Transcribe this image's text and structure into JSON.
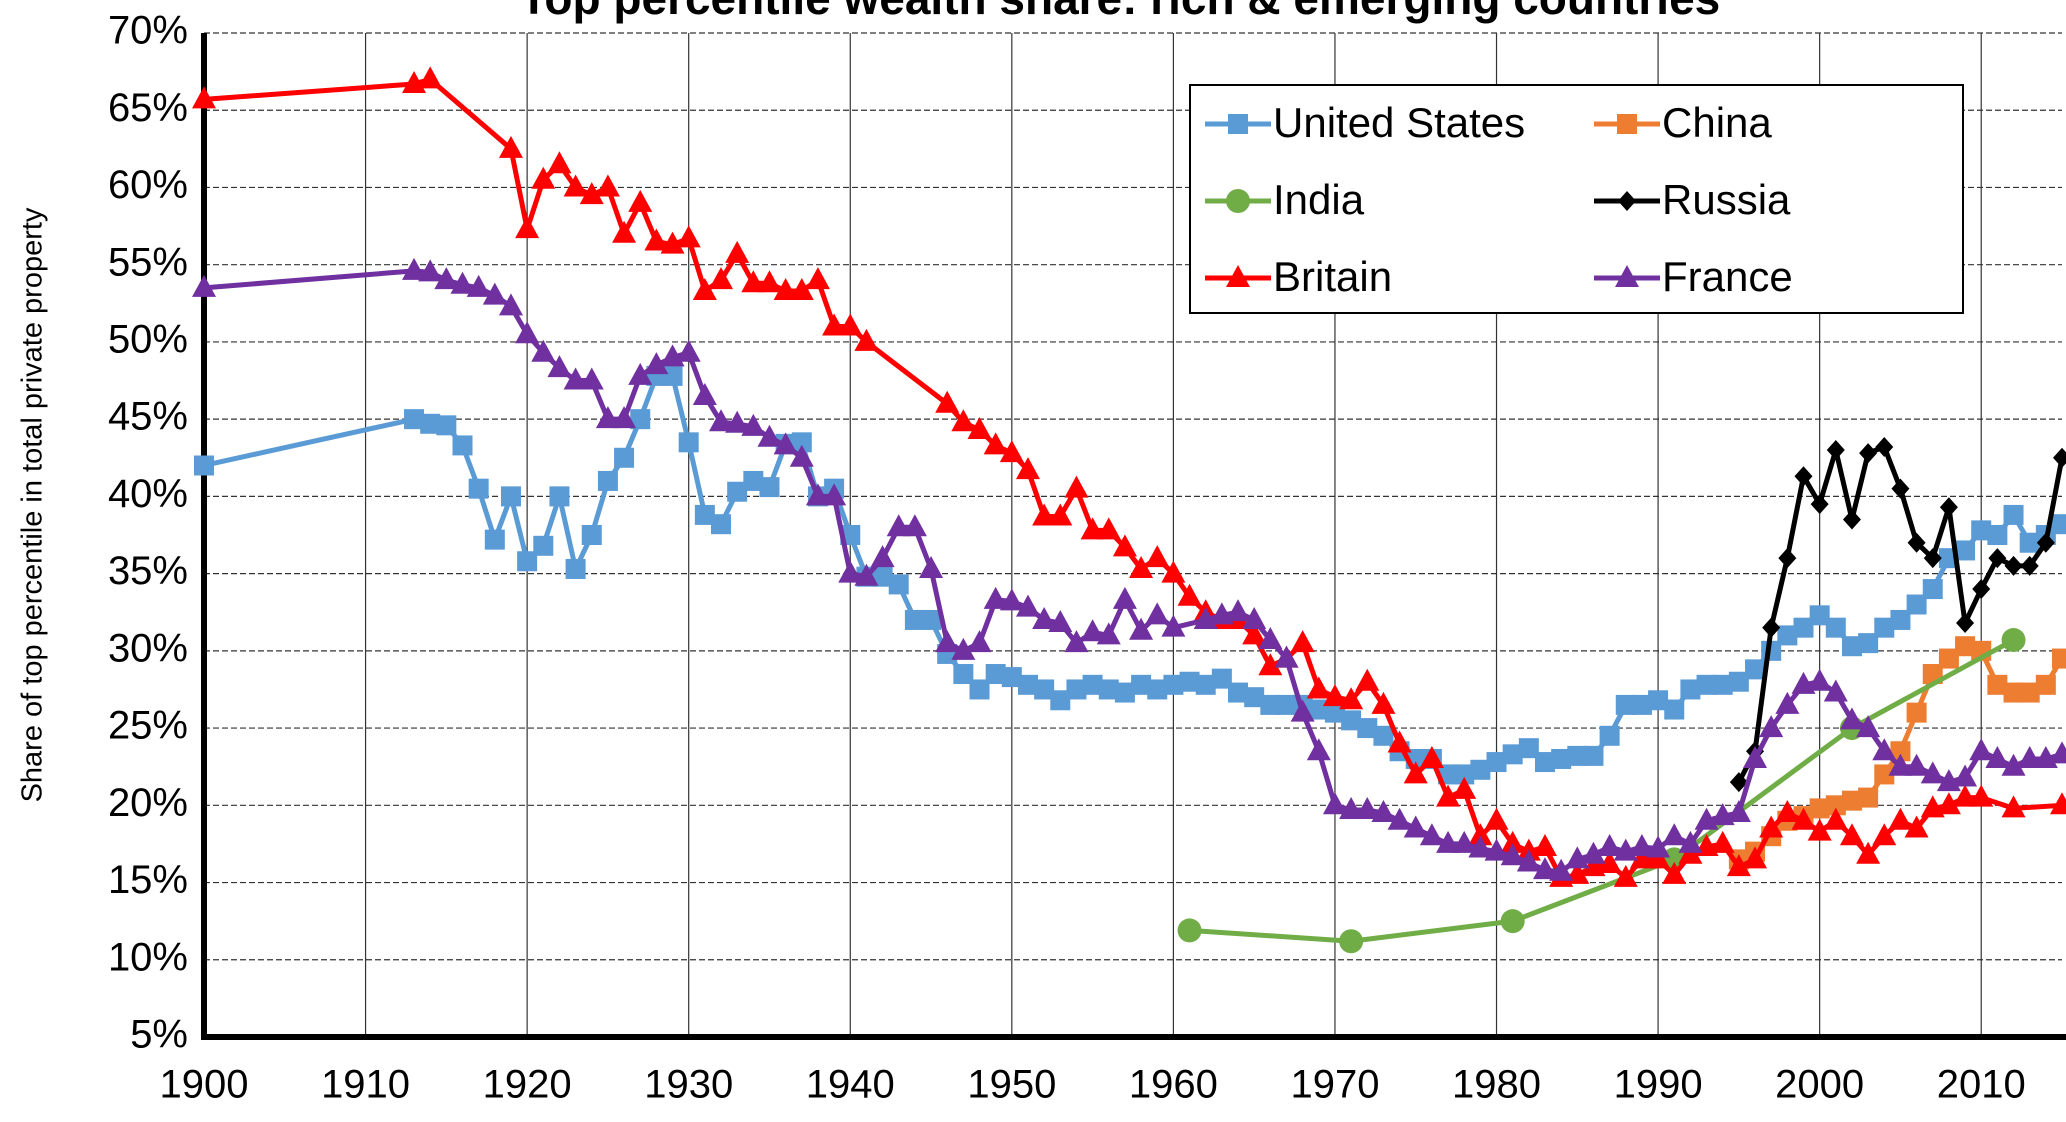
{
  "chart_data": {
    "type": "line",
    "title": "Top percentile wealth share: rich & emerging countries",
    "y_label": "Share of top percentile in total private property",
    "xlim": [
      1900,
      2015
    ],
    "xticks": [
      1900,
      1910,
      1920,
      1930,
      1940,
      1950,
      1960,
      1970,
      1980,
      1990,
      2000,
      2010
    ],
    "ylim": [
      5,
      70
    ],
    "yticks": [
      {
        "value": 5,
        "label": "5%"
      },
      {
        "value": 10,
        "label": "10%"
      },
      {
        "value": 15,
        "label": "15%"
      },
      {
        "value": 20,
        "label": "20%"
      },
      {
        "value": 25,
        "label": "25%"
      },
      {
        "value": 30,
        "label": "30%"
      },
      {
        "value": 35,
        "label": "35%"
      },
      {
        "value": 40,
        "label": "40%"
      },
      {
        "value": 45,
        "label": "45%"
      },
      {
        "value": 50,
        "label": "50%"
      },
      {
        "value": 55,
        "label": "55%"
      },
      {
        "value": 60,
        "label": "60%"
      },
      {
        "value": 65,
        "label": "65%"
      },
      {
        "value": 70,
        "label": "70%"
      }
    ],
    "grid": true,
    "legend": "top-right",
    "series": [
      {
        "name": "United States",
        "color": "#5b9bd5",
        "marker": "square",
        "x": [
          1900,
          1913,
          1914,
          1915,
          1916,
          1917,
          1918,
          1919,
          1920,
          1921,
          1922,
          1923,
          1924,
          1925,
          1926,
          1927,
          1928,
          1929,
          1930,
          1931,
          1932,
          1933,
          1934,
          1935,
          1936,
          1937,
          1938,
          1939,
          1940,
          1941,
          1942,
          1943,
          1944,
          1945,
          1946,
          1947,
          1948,
          1949,
          1950,
          1951,
          1952,
          1953,
          1954,
          1955,
          1956,
          1957,
          1958,
          1959,
          1960,
          1961,
          1962,
          1963,
          1964,
          1965,
          1966,
          1967,
          1968,
          1969,
          1970,
          1971,
          1972,
          1973,
          1974,
          1975,
          1976,
          1977,
          1978,
          1979,
          1980,
          1981,
          1982,
          1983,
          1984,
          1985,
          1986,
          1987,
          1988,
          1989,
          1990,
          1991,
          1992,
          1993,
          1994,
          1995,
          1996,
          1997,
          1998,
          1999,
          2000,
          2001,
          2002,
          2003,
          2004,
          2005,
          2006,
          2007,
          2008,
          2009,
          2010,
          2011,
          2012,
          2013,
          2014,
          2015
        ],
        "values": [
          42,
          45,
          44.7,
          44.6,
          43.3,
          40.5,
          37.2,
          40,
          35.8,
          36.8,
          40,
          35.3,
          37.5,
          41,
          42.5,
          45,
          47.8,
          47.8,
          43.5,
          38.8,
          38.2,
          40.3,
          41,
          40.6,
          43.4,
          43.5,
          40,
          40.5,
          37.5,
          34.8,
          34.8,
          34.3,
          32,
          32,
          29.8,
          28.5,
          27.5,
          28.5,
          28.3,
          27.8,
          27.5,
          26.8,
          27.5,
          27.8,
          27.5,
          27.3,
          27.8,
          27.5,
          27.8,
          28,
          27.8,
          28.2,
          27.3,
          27,
          26.5,
          26.5,
          26.5,
          26.2,
          26,
          25.5,
          25,
          24.5,
          23.5,
          23,
          23,
          22,
          22,
          22.3,
          22.8,
          23.3,
          23.7,
          22.8,
          23,
          23.2,
          23.2,
          24.5,
          26.5,
          26.5,
          26.8,
          26.2,
          27.5,
          27.8,
          27.8,
          28,
          28.8,
          30,
          31,
          31.5,
          32.3,
          31.5,
          30.3,
          30.5,
          31.5,
          32,
          33,
          34,
          36,
          36.5,
          37.8,
          37.5,
          38.8,
          37,
          37.5,
          38.2
        ]
      },
      {
        "name": "China",
        "color": "#ed7d31",
        "marker": "square",
        "x": [
          1995,
          1996,
          1997,
          1998,
          1999,
          2000,
          2001,
          2002,
          2003,
          2004,
          2005,
          2006,
          2007,
          2008,
          2009,
          2010,
          2011,
          2012,
          2013,
          2014,
          2015
        ],
        "values": [
          16.5,
          17,
          18,
          19,
          19.3,
          19.8,
          20,
          20.3,
          20.5,
          22,
          23.5,
          26,
          28.5,
          29.5,
          30.3,
          30,
          27.8,
          27.3,
          27.3,
          27.8,
          29.5
        ]
      },
      {
        "name": "India",
        "color": "#70ad47",
        "marker": "circle",
        "x": [
          1961,
          1971,
          1981,
          1991,
          2002,
          2012
        ],
        "values": [
          11.9,
          11.2,
          12.5,
          16.5,
          25,
          30.7
        ]
      },
      {
        "name": "Russia",
        "color": "#000000",
        "marker": "diamond",
        "x": [
          1995,
          1996,
          1997,
          1998,
          1999,
          2000,
          2001,
          2002,
          2003,
          2004,
          2005,
          2006,
          2007,
          2008,
          2009,
          2010,
          2011,
          2012,
          2013,
          2014,
          2015
        ],
        "values": [
          21.5,
          23.5,
          31.5,
          36,
          41.3,
          39.5,
          43,
          38.5,
          42.8,
          43.2,
          40.5,
          37,
          36,
          39.3,
          31.8,
          34,
          36,
          35.5,
          35.5,
          37,
          42.5
        ]
      },
      {
        "name": "Britain",
        "color": "#ff0000",
        "marker": "triangle",
        "x": [
          1900,
          1913,
          1914,
          1919,
          1920,
          1921,
          1922,
          1923,
          1924,
          1925,
          1926,
          1927,
          1928,
          1929,
          1930,
          1931,
          1932,
          1933,
          1934,
          1935,
          1936,
          1937,
          1938,
          1939,
          1940,
          1941,
          1946,
          1947,
          1948,
          1949,
          1950,
          1951,
          1952,
          1953,
          1954,
          1955,
          1956,
          1957,
          1958,
          1959,
          1960,
          1961,
          1962,
          1963,
          1964,
          1965,
          1966,
          1967,
          1968,
          1969,
          1970,
          1971,
          1972,
          1973,
          1974,
          1975,
          1976,
          1977,
          1978,
          1979,
          1980,
          1981,
          1982,
          1983,
          1984,
          1985,
          1986,
          1987,
          1988,
          1989,
          1990,
          1991,
          1992,
          1993,
          1994,
          1995,
          1996,
          1997,
          1998,
          1999,
          2000,
          2001,
          2002,
          2003,
          2004,
          2005,
          2006,
          2007,
          2008,
          2009,
          2010,
          2012,
          2015
        ],
        "values": [
          65.7,
          66.7,
          67,
          62.5,
          57.3,
          60.5,
          61.5,
          60,
          59.5,
          60,
          57,
          59,
          56.5,
          56.3,
          56.7,
          53.3,
          54,
          55.7,
          53.8,
          53.8,
          53.3,
          53.3,
          54,
          51,
          51,
          50,
          46,
          44.8,
          44.3,
          43.3,
          42.8,
          41.7,
          38.7,
          38.7,
          40.5,
          37.8,
          37.8,
          36.7,
          35.3,
          36,
          35,
          33.5,
          32.5,
          32,
          32,
          31,
          29,
          29.5,
          30.5,
          27.5,
          27,
          26.8,
          28,
          26.5,
          24,
          22,
          23,
          20.5,
          21,
          18,
          19,
          17.5,
          17,
          17.3,
          15.3,
          15.5,
          16,
          16.2,
          15.3,
          16.5,
          16.5,
          15.5,
          16.8,
          17.3,
          17.5,
          16,
          16.5,
          18.5,
          19.5,
          19,
          18.3,
          19,
          18,
          16.8,
          18,
          19,
          18.5,
          19.8,
          20,
          20.5,
          20.5,
          19.8,
          20
        ]
      },
      {
        "name": "France",
        "color": "#7030a0",
        "marker": "triangle",
        "x": [
          1900,
          1913,
          1914,
          1915,
          1916,
          1917,
          1918,
          1919,
          1920,
          1921,
          1922,
          1923,
          1924,
          1925,
          1926,
          1927,
          1928,
          1929,
          1930,
          1931,
          1932,
          1933,
          1934,
          1935,
          1936,
          1937,
          1938,
          1939,
          1940,
          1941,
          1942,
          1943,
          1944,
          1945,
          1946,
          1947,
          1948,
          1949,
          1950,
          1951,
          1952,
          1953,
          1954,
          1955,
          1956,
          1957,
          1958,
          1959,
          1960,
          1962,
          1963,
          1964,
          1965,
          1966,
          1967,
          1968,
          1969,
          1970,
          1971,
          1972,
          1973,
          1974,
          1975,
          1976,
          1977,
          1978,
          1979,
          1980,
          1981,
          1982,
          1983,
          1984,
          1985,
          1986,
          1987,
          1988,
          1989,
          1990,
          1991,
          1992,
          1993,
          1994,
          1995,
          1996,
          1997,
          1998,
          1999,
          2000,
          2001,
          2002,
          2003,
          2004,
          2005,
          2006,
          2007,
          2008,
          2009,
          2010,
          2011,
          2012,
          2013,
          2014,
          2015
        ],
        "values": [
          53.5,
          54.6,
          54.5,
          54,
          53.7,
          53.5,
          53,
          52.3,
          50.5,
          49.3,
          48.3,
          47.5,
          47.5,
          45,
          45,
          47.8,
          48.5,
          49,
          49.3,
          46.5,
          44.8,
          44.7,
          44.5,
          43.8,
          43.3,
          42.5,
          40,
          40,
          35,
          34.8,
          36,
          38,
          38,
          35.3,
          30.5,
          30,
          30.5,
          33.3,
          33.2,
          32.8,
          32,
          31.8,
          30.5,
          31.2,
          31,
          33.3,
          31.3,
          32.3,
          31.5,
          32,
          32.3,
          32.5,
          32,
          30.7,
          29.5,
          26,
          23.5,
          20,
          19.7,
          19.7,
          19.5,
          19,
          18.5,
          18,
          17.5,
          17.5,
          17.2,
          17,
          16.7,
          16.3,
          15.8,
          15.7,
          16.5,
          16.8,
          17.3,
          17,
          17.3,
          17.2,
          18,
          17.5,
          19,
          19.3,
          19.5,
          23,
          25,
          26.5,
          27.8,
          28,
          27.3,
          25.5,
          25,
          23.5,
          22.5,
          22.5,
          22,
          21.5,
          21.8,
          23.5,
          23,
          22.5,
          23,
          23,
          23.3
        ]
      }
    ]
  }
}
